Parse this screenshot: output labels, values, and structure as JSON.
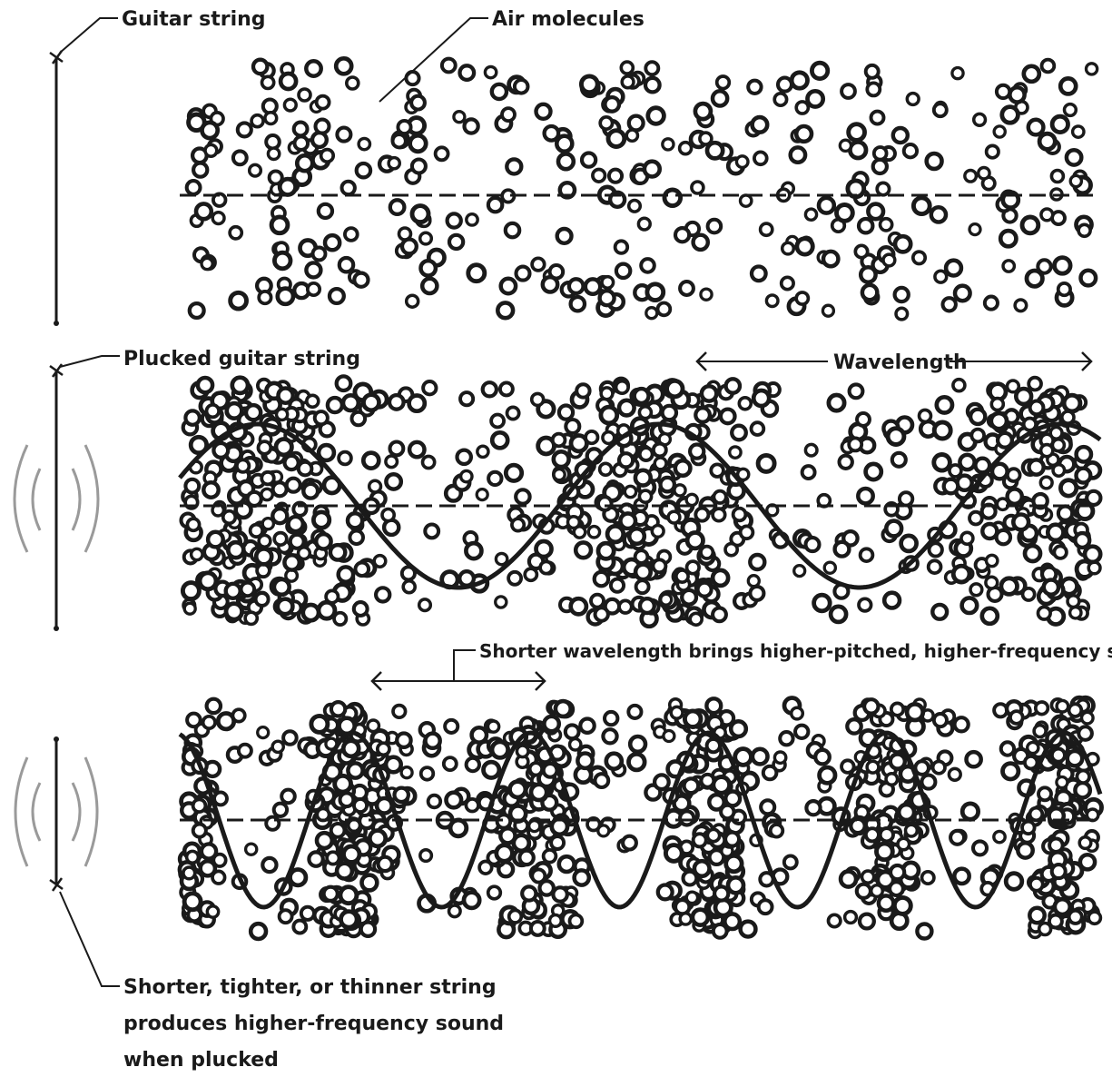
{
  "labels": {
    "guitar_string": "Guitar string",
    "air_molecules": "Air molecules",
    "plucked_string": "Plucked guitar string",
    "wavelength": "Wavelength",
    "shorter_wavelength": "Shorter wavelength brings higher-pitched, higher-frequency sound",
    "bottom_note_line1": "Shorter, tighter, or thinner string",
    "bottom_note_line2": "produces higher-frequency sound",
    "bottom_note_line3": "when plucked"
  },
  "colors": {
    "ink": "#1a1a1a",
    "vibration": "#9a9a9a",
    "background": "#ffffff"
  },
  "panels": [
    {
      "id": "still-air",
      "wave": false,
      "cycles": 0
    },
    {
      "id": "plucked",
      "wave": true,
      "cycles": 2.3
    },
    {
      "id": "high-frequency",
      "wave": true,
      "cycles": 5
    }
  ]
}
